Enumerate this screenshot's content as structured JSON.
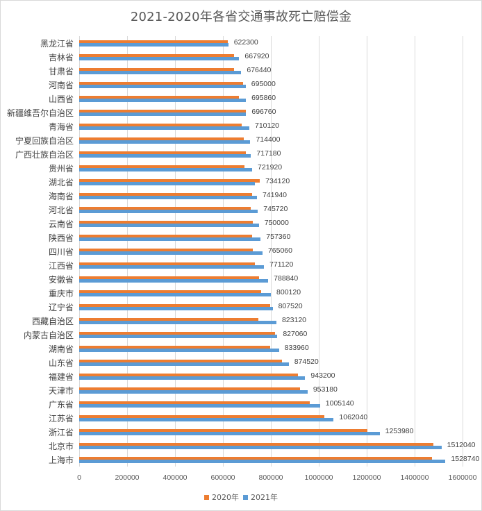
{
  "chart_data": {
    "type": "bar",
    "orientation": "horizontal",
    "title": "2021-2020年各省交通事故死亡赔偿金",
    "xlabel": "",
    "ylabel": "",
    "xlim": [
      0,
      1600000
    ],
    "x_ticks": [
      "0",
      "200000",
      "400000",
      "600000",
      "800000",
      "1000000",
      "1200000",
      "1400000",
      "1600000"
    ],
    "grid": true,
    "legend_position": "bottom",
    "categories": [
      "黑龙江省",
      "吉林省",
      "甘肃省",
      "河南省",
      "山西省",
      "新疆维吾尔自治区",
      "青海省",
      "宁夏回族自治区",
      "广西壮族自治区",
      "贵州省",
      "湖北省",
      "海南省",
      "河北省",
      "云南省",
      "陕西省",
      "四川省",
      "江西省",
      "安徽省",
      "重庆市",
      "辽宁省",
      "西藏自治区",
      "内蒙古自治区",
      "湖南省",
      "山东省",
      "福建省",
      "天津市",
      "广东省",
      "江苏省",
      "浙江省",
      "北京市",
      "上海市"
    ],
    "series": [
      {
        "name": "2020年",
        "color": "#ed7d31",
        "values": [
          620000,
          646000,
          646000,
          684000,
          667000,
          696000,
          678000,
          687000,
          696000,
          690000,
          754000,
          722000,
          716000,
          725000,
          722000,
          725000,
          733000,
          751000,
          759000,
          797000,
          748000,
          817000,
          797000,
          846000,
          913000,
          922000,
          962000,
          1023000,
          1203000,
          1478000,
          1472000
        ]
      },
      {
        "name": "2021年",
        "color": "#5b9bd5",
        "values": [
          622300,
          667920,
          676440,
          695000,
          695860,
          696760,
          710120,
          714400,
          717180,
          721920,
          734120,
          741940,
          745720,
          750000,
          757360,
          765060,
          771120,
          788840,
          800120,
          807520,
          823120,
          827060,
          833960,
          874520,
          943200,
          953180,
          1005140,
          1062040,
          1253980,
          1512040,
          1528740
        ]
      }
    ],
    "data_labels": {
      "series": "2021年",
      "values": [
        "622300",
        "667920",
        "676440",
        "695000",
        "695860",
        "696760",
        "710120",
        "714400",
        "717180",
        "721920",
        "734120",
        "741940",
        "745720",
        "750000",
        "757360",
        "765060",
        "771120",
        "788840",
        "800120",
        "807520",
        "823120",
        "827060",
        "833960",
        "874520",
        "943200",
        "953180",
        "1005140",
        "1062040",
        "1253980",
        "1512040",
        "1528740"
      ]
    }
  },
  "legend": [
    {
      "label": "2020年",
      "color": "#ed7d31"
    },
    {
      "label": "2021年",
      "color": "#5b9bd5"
    }
  ]
}
